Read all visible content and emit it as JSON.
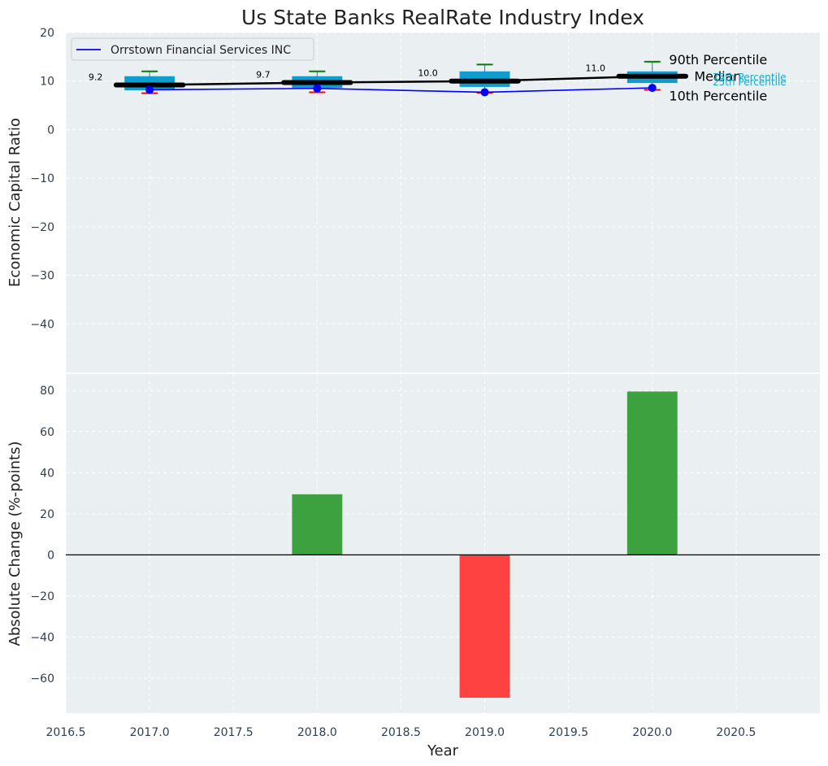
{
  "chart_data": {
    "title": "Us State Banks RealRate Industry Index",
    "xlabel": "Year",
    "xlim": [
      2016.5,
      2021.0
    ],
    "xticks": [
      2016.5,
      2017.0,
      2017.5,
      2018.0,
      2018.5,
      2019.0,
      2019.5,
      2020.0,
      2020.5
    ],
    "xtick_labels": [
      "2016.5",
      "2017.0",
      "2017.5",
      "2018.0",
      "2018.5",
      "2019.0",
      "2019.5",
      "2020.0",
      "2020.5"
    ],
    "top": {
      "type": "box",
      "ylabel": "Economic Capital Ratio",
      "ylim": [
        -50,
        20
      ],
      "yticks": [
        20,
        10,
        0,
        -10,
        -20,
        -30,
        -40
      ],
      "ytick_labels": [
        "20",
        "10",
        "0",
        "−10",
        "−20",
        "−30",
        "−40"
      ],
      "legend": {
        "label": "Orrstown Financial Services INC",
        "position": "top-left"
      },
      "years": [
        2017,
        2018,
        2019,
        2020
      ],
      "p10": [
        7.5,
        7.7,
        7.6,
        8.2
      ],
      "p25": [
        8.1,
        8.6,
        8.8,
        9.6
      ],
      "median": [
        9.2,
        9.7,
        10.0,
        11.0
      ],
      "p75": [
        11.0,
        11.0,
        12.0,
        12.0
      ],
      "p90": [
        12.0,
        12.0,
        13.4,
        14.0
      ],
      "median_labels": [
        "9.2",
        "9.7",
        "10.0",
        "11.0"
      ],
      "company": [
        8.2,
        8.5,
        7.7,
        8.6
      ],
      "annotations": {
        "p90": "90th Percentile",
        "median": "Median",
        "p10": "10th Percentile",
        "p75": "75th Percentile",
        "p25": "25th Percentile"
      }
    },
    "bottom": {
      "type": "bar",
      "ylabel": "Absolute Change (%-points)",
      "ylim": [
        -77,
        88
      ],
      "yticks": [
        80,
        60,
        40,
        20,
        0,
        -20,
        -40,
        -60
      ],
      "ytick_labels": [
        "80",
        "60",
        "40",
        "20",
        "0",
        "−20",
        "−40",
        "−60"
      ],
      "years": [
        2017,
        2018,
        2019,
        2020
      ],
      "values": [
        0,
        29.5,
        -69.5,
        79.5
      ]
    },
    "colors": {
      "box": "#0e9dce",
      "median_line": "#000000",
      "company_line": "#0000ff",
      "whisker_high": "#008000",
      "whisker_low": "#ff0000",
      "bar_positive": "#2e9a30",
      "bar_negative": "#ff3333",
      "percentile_text": "#1aa7c9",
      "background": "#eaeff1",
      "grid": "#ffffff",
      "tick_text": "#2e3f55"
    }
  }
}
